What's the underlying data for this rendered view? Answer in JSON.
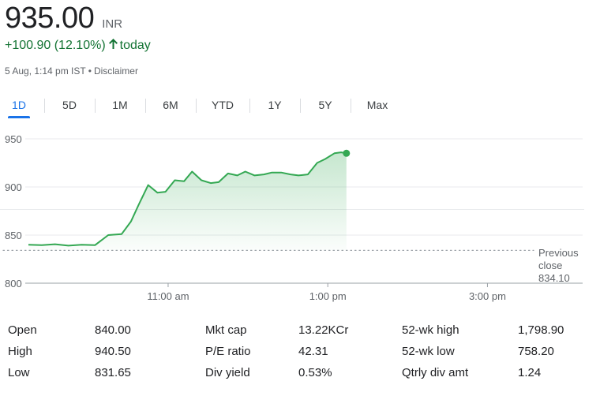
{
  "quote": {
    "price": "935.00",
    "currency": "INR",
    "change": "+100.90 (12.10%)",
    "period": "today",
    "timestamp": "5 Aug, 1:14 pm IST",
    "disclaimer": "Disclaimer"
  },
  "tabs": [
    {
      "label": "1D",
      "active": true
    },
    {
      "label": "5D",
      "active": false
    },
    {
      "label": "1M",
      "active": false
    },
    {
      "label": "6M",
      "active": false
    },
    {
      "label": "YTD",
      "active": false
    },
    {
      "label": "1Y",
      "active": false
    },
    {
      "label": "5Y",
      "active": false
    },
    {
      "label": "Max",
      "active": false
    }
  ],
  "colors": {
    "line": "#34a853",
    "positive": "#137333",
    "accent": "#1a73e8"
  },
  "chart_data": {
    "type": "line",
    "x_axis": "time of day",
    "x_start": "09:15",
    "x_end": "15:30",
    "x_ticks": [
      "11:00 am",
      "1:00 pm",
      "3:00 pm"
    ],
    "y_ticks": [
      800,
      850,
      900,
      950
    ],
    "ylim": [
      800,
      955
    ],
    "grid": true,
    "previous_close": {
      "label_line1": "Previous",
      "label_line2": "close",
      "value": "834.10",
      "y": 834.1
    },
    "series": [
      {
        "x": [
          "09:15",
          "09:25",
          "09:35",
          "09:45",
          "09:55",
          "10:05",
          "10:15",
          "10:25",
          "10:32",
          "10:38",
          "10:45",
          "10:52",
          "10:58",
          "11:05",
          "11:12",
          "11:18",
          "11:25",
          "11:32",
          "11:38",
          "11:45",
          "11:52",
          "11:58",
          "12:05",
          "12:12",
          "12:18",
          "12:25",
          "12:32",
          "12:38",
          "12:45",
          "12:52",
          "12:58",
          "13:05",
          "13:10",
          "13:14"
        ],
        "y": [
          840.0,
          839.5,
          840.5,
          839.0,
          840.0,
          839.5,
          850.0,
          851.0,
          864.0,
          882.0,
          902.0,
          894.0,
          895.0,
          907.0,
          906.0,
          916.0,
          907.0,
          904.0,
          905.0,
          914.0,
          912.0,
          916.0,
          912.0,
          913.0,
          915.0,
          915.0,
          913.0,
          912.0,
          913.0,
          925.0,
          929.0,
          935.0,
          936.0,
          935.0
        ]
      }
    ]
  },
  "stats": [
    {
      "label": "Open",
      "value": "840.00"
    },
    {
      "label": "High",
      "value": "940.50"
    },
    {
      "label": "Low",
      "value": "831.65"
    },
    {
      "label": "Mkt cap",
      "value": "13.22KCr"
    },
    {
      "label": "P/E ratio",
      "value": "42.31"
    },
    {
      "label": "Div yield",
      "value": "0.53%"
    },
    {
      "label": "52-wk high",
      "value": "1,798.90"
    },
    {
      "label": "52-wk low",
      "value": "758.20"
    },
    {
      "label": "Qtrly div amt",
      "value": "1.24"
    }
  ]
}
